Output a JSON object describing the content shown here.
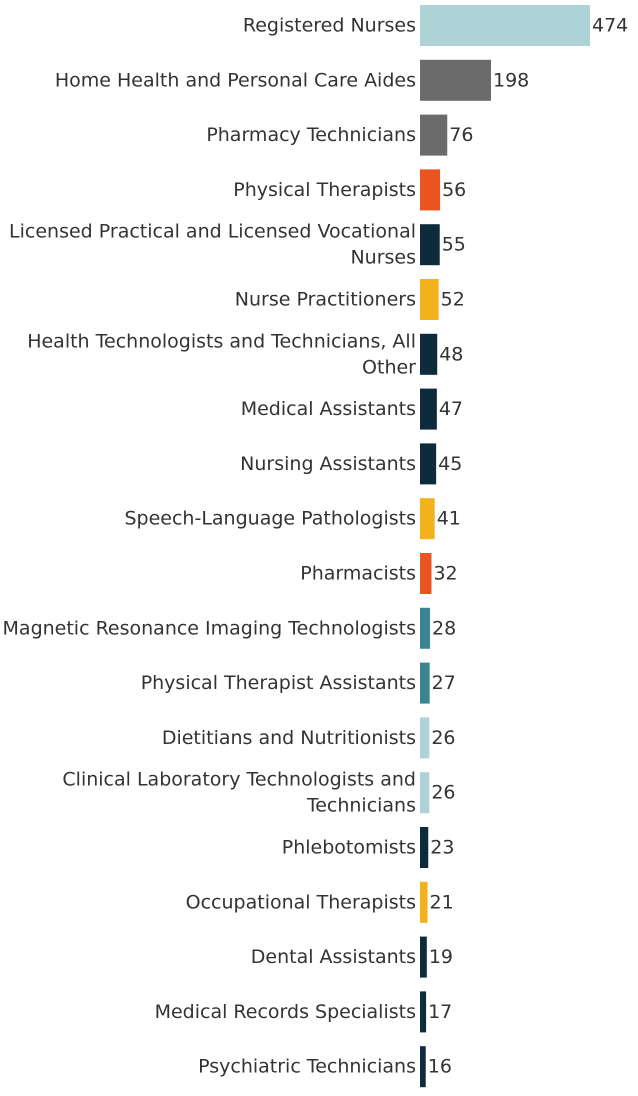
{
  "chart_data": {
    "type": "bar",
    "orientation": "horizontal",
    "grid": false,
    "categories": [
      [
        "Registered Nurses"
      ],
      [
        "Home Health and Personal Care Aides"
      ],
      [
        "Pharmacy Technicians"
      ],
      [
        "Physical Therapists"
      ],
      [
        "Licensed Practical and Licensed Vocational",
        "Nurses"
      ],
      [
        "Nurse Practitioners"
      ],
      [
        "Health Technologists and Technicians, All",
        "Other"
      ],
      [
        "Medical Assistants"
      ],
      [
        "Nursing Assistants"
      ],
      [
        "Speech-Language Pathologists"
      ],
      [
        "Pharmacists"
      ],
      [
        "Magnetic Resonance Imaging Technologists"
      ],
      [
        "Physical Therapist Assistants"
      ],
      [
        "Dietitians and Nutritionists"
      ],
      [
        "Clinical Laboratory Technologists and",
        "Technicians"
      ],
      [
        "Phlebotomists"
      ],
      [
        "Occupational Therapists"
      ],
      [
        "Dental Assistants"
      ],
      [
        "Medical Records Specialists"
      ],
      [
        "Psychiatric Technicians"
      ]
    ],
    "values": [
      474,
      198,
      76,
      56,
      55,
      52,
      48,
      47,
      45,
      41,
      32,
      28,
      27,
      26,
      26,
      23,
      21,
      19,
      17,
      16
    ],
    "bar_colors": [
      "#aed3d7",
      "#6b6b6b",
      "#6b6b6b",
      "#e95420",
      "#0d2b3a",
      "#f2b21b",
      "#0d2b3a",
      "#0d2b3a",
      "#0d2b3a",
      "#f2b21b",
      "#e95420",
      "#3a8590",
      "#3a8590",
      "#aed3d7",
      "#aed3d7",
      "#0d2b3a",
      "#f2b21b",
      "#0d2b3a",
      "#0d2b3a",
      "#0d2b3a"
    ]
  }
}
